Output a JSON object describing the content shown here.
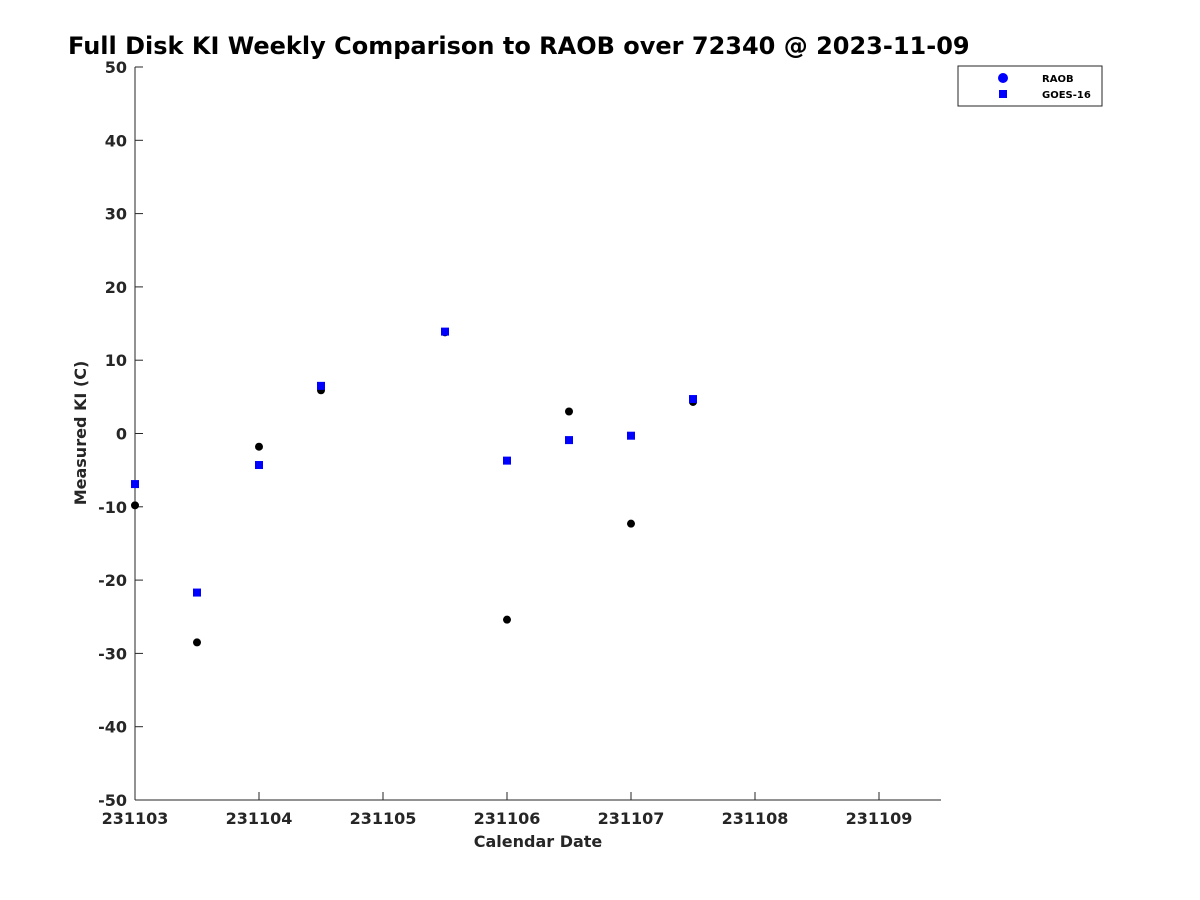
{
  "chart_data": {
    "type": "scatter",
    "title": "Full Disk KI Weekly Comparison to RAOB over 72340 @ 2023-11-09",
    "xlabel": "Calendar Date",
    "ylabel": "Measured KI (C)",
    "x_ticks": [
      "231103",
      "231104",
      "231105",
      "231106",
      "231107",
      "231108",
      "231109"
    ],
    "y_ticks": [
      "-50",
      "-40",
      "-30",
      "-20",
      "-10",
      "0",
      "10",
      "20",
      "30",
      "40",
      "50"
    ],
    "xlim": [
      0,
      6.5
    ],
    "ylim": [
      -50,
      50
    ],
    "grid": false,
    "legend_position": "top-right",
    "series": [
      {
        "name": "RAOB",
        "marker": "circle",
        "legend_color": "#0000ff",
        "point_color": "#000000",
        "x": [
          0,
          0.5,
          1,
          1.5,
          2.5,
          3,
          3.5,
          4,
          4.5
        ],
        "y": [
          -9.8,
          -28.5,
          -1.8,
          5.9,
          13.8,
          -25.4,
          3.0,
          -12.3,
          4.3
        ]
      },
      {
        "name": "GOES-16",
        "marker": "square",
        "legend_color": "#0000ff",
        "point_color": "#0000ff",
        "x": [
          0,
          0.5,
          1,
          1.5,
          2.5,
          3,
          3.5,
          4,
          4.5
        ],
        "y": [
          -6.9,
          -21.7,
          -4.3,
          6.5,
          13.9,
          -3.7,
          -0.9,
          -0.3,
          4.7
        ]
      }
    ]
  }
}
